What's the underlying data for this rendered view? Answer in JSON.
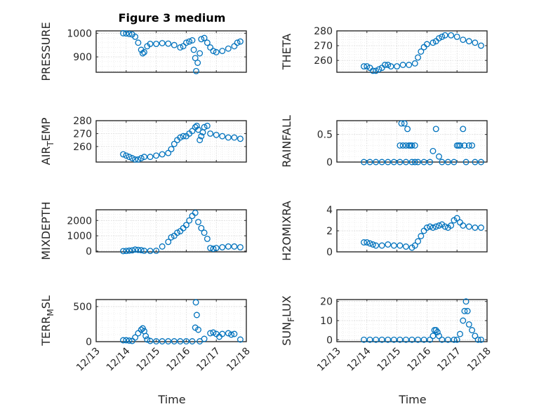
{
  "figure": {
    "title": "Figure 3 medium",
    "xlabel": "Time",
    "x_ticks": [
      "12/13",
      "12/14",
      "12/15",
      "12/16",
      "12/17",
      "12/18"
    ]
  },
  "colors": {
    "marker": "#0072BD",
    "axis": "#262626"
  },
  "chart_data": [
    {
      "type": "scatter",
      "ylabel": "PRESSURE",
      "ylim": [
        835,
        1010
      ],
      "yticks": [
        "900",
        "1000"
      ],
      "ytick_values": [
        900,
        1000
      ],
      "points": [
        [
          13.9,
          1000
        ],
        [
          14.0,
          999
        ],
        [
          14.1,
          997
        ],
        [
          14.2,
          995
        ],
        [
          14.3,
          985
        ],
        [
          14.4,
          960
        ],
        [
          14.5,
          930
        ],
        [
          14.55,
          915
        ],
        [
          14.6,
          920
        ],
        [
          14.7,
          945
        ],
        [
          14.8,
          955
        ],
        [
          15.0,
          955
        ],
        [
          15.2,
          958
        ],
        [
          15.4,
          956
        ],
        [
          15.6,
          950
        ],
        [
          15.8,
          940
        ],
        [
          15.9,
          945
        ],
        [
          16.0,
          960
        ],
        [
          16.1,
          965
        ],
        [
          16.2,
          970
        ],
        [
          16.25,
          930
        ],
        [
          16.3,
          895
        ],
        [
          16.33,
          840
        ],
        [
          16.38,
          875
        ],
        [
          16.45,
          915
        ],
        [
          16.5,
          975
        ],
        [
          16.6,
          980
        ],
        [
          16.7,
          960
        ],
        [
          16.8,
          940
        ],
        [
          16.9,
          925
        ],
        [
          17.0,
          920
        ],
        [
          17.2,
          925
        ],
        [
          17.4,
          935
        ],
        [
          17.6,
          945
        ],
        [
          17.7,
          960
        ],
        [
          17.8,
          965
        ]
      ]
    },
    {
      "type": "scatter",
      "ylabel": "THETA",
      "ylim": [
        252,
        280
      ],
      "yticks": [
        "260",
        "270",
        "280"
      ],
      "ytick_values": [
        260,
        270,
        280
      ],
      "points": [
        [
          13.9,
          256
        ],
        [
          14.0,
          256
        ],
        [
          14.1,
          255
        ],
        [
          14.2,
          253
        ],
        [
          14.3,
          253
        ],
        [
          14.4,
          254
        ],
        [
          14.5,
          255
        ],
        [
          14.6,
          257
        ],
        [
          14.7,
          257
        ],
        [
          14.8,
          256
        ],
        [
          15.0,
          256
        ],
        [
          15.2,
          257
        ],
        [
          15.4,
          257
        ],
        [
          15.6,
          258
        ],
        [
          15.7,
          262
        ],
        [
          15.8,
          266
        ],
        [
          15.9,
          269
        ],
        [
          16.0,
          271
        ],
        [
          16.2,
          272
        ],
        [
          16.3,
          273
        ],
        [
          16.4,
          275
        ],
        [
          16.5,
          276
        ],
        [
          16.6,
          277
        ],
        [
          16.8,
          277
        ],
        [
          17.0,
          276
        ],
        [
          17.2,
          274
        ],
        [
          17.4,
          273
        ],
        [
          17.6,
          272
        ],
        [
          17.8,
          270
        ]
      ]
    },
    {
      "type": "scatter",
      "ylabel": "AIR_TEMP",
      "ylim": [
        248,
        280
      ],
      "yticks": [
        "260",
        "270",
        "280"
      ],
      "ytick_values": [
        260,
        270,
        280
      ],
      "points": [
        [
          13.9,
          254
        ],
        [
          14.0,
          253
        ],
        [
          14.1,
          252
        ],
        [
          14.2,
          251
        ],
        [
          14.3,
          250
        ],
        [
          14.4,
          250
        ],
        [
          14.5,
          251
        ],
        [
          14.6,
          252
        ],
        [
          14.8,
          252
        ],
        [
          15.0,
          253
        ],
        [
          15.2,
          254
        ],
        [
          15.4,
          255
        ],
        [
          15.5,
          258
        ],
        [
          15.6,
          262
        ],
        [
          15.7,
          265
        ],
        [
          15.8,
          267
        ],
        [
          15.9,
          268
        ],
        [
          16.0,
          268
        ],
        [
          16.1,
          270
        ],
        [
          16.2,
          272
        ],
        [
          16.3,
          275
        ],
        [
          16.35,
          276
        ],
        [
          16.4,
          273
        ],
        [
          16.45,
          265
        ],
        [
          16.5,
          268
        ],
        [
          16.55,
          271
        ],
        [
          16.6,
          275
        ],
        [
          16.7,
          276
        ],
        [
          16.8,
          270
        ],
        [
          17.0,
          269
        ],
        [
          17.2,
          268
        ],
        [
          17.4,
          267
        ],
        [
          17.6,
          267
        ],
        [
          17.8,
          266
        ]
      ]
    },
    {
      "type": "scatter",
      "ylabel": "RAINFALL",
      "ylim": [
        0,
        0.75
      ],
      "yticks": [
        "0",
        "0.5"
      ],
      "ytick_values": [
        0,
        0.5
      ],
      "points": [
        [
          13.9,
          0
        ],
        [
          14.1,
          0
        ],
        [
          14.3,
          0
        ],
        [
          14.5,
          0
        ],
        [
          14.7,
          0
        ],
        [
          14.9,
          0
        ],
        [
          15.1,
          0
        ],
        [
          15.3,
          0
        ],
        [
          15.5,
          0
        ],
        [
          15.6,
          0
        ],
        [
          15.1,
          0.3
        ],
        [
          15.15,
          0.7
        ],
        [
          15.2,
          0.3
        ],
        [
          15.25,
          0.7
        ],
        [
          15.3,
          0.3
        ],
        [
          15.35,
          0.6
        ],
        [
          15.4,
          0.3
        ],
        [
          15.45,
          0.3
        ],
        [
          15.5,
          0.3
        ],
        [
          15.6,
          0.3
        ],
        [
          15.7,
          0
        ],
        [
          15.9,
          0
        ],
        [
          16.1,
          0
        ],
        [
          16.2,
          0.2
        ],
        [
          16.3,
          0.6
        ],
        [
          16.4,
          0.1
        ],
        [
          16.5,
          0
        ],
        [
          16.7,
          0
        ],
        [
          16.9,
          0
        ],
        [
          17.0,
          0.3
        ],
        [
          17.05,
          0.3
        ],
        [
          17.1,
          0.3
        ],
        [
          17.2,
          0.6
        ],
        [
          17.25,
          0.3
        ],
        [
          17.3,
          0
        ],
        [
          17.4,
          0.3
        ],
        [
          17.5,
          0.3
        ],
        [
          17.6,
          0
        ],
        [
          17.8,
          0
        ]
      ]
    },
    {
      "type": "scatter",
      "ylabel": "MIXDEPTH",
      "ylim": [
        -50,
        2700
      ],
      "yticks": [
        "0",
        "1000",
        "2000"
      ],
      "ytick_values": [
        0,
        1000,
        2000
      ],
      "points": [
        [
          13.9,
          0
        ],
        [
          14.0,
          10
        ],
        [
          14.1,
          30
        ],
        [
          14.2,
          50
        ],
        [
          14.3,
          100
        ],
        [
          14.4,
          80
        ],
        [
          14.5,
          60
        ],
        [
          14.6,
          20
        ],
        [
          14.8,
          10
        ],
        [
          15.0,
          20
        ],
        [
          15.2,
          300
        ],
        [
          15.4,
          600
        ],
        [
          15.5,
          900
        ],
        [
          15.6,
          1000
        ],
        [
          15.7,
          1200
        ],
        [
          15.8,
          1300
        ],
        [
          15.9,
          1500
        ],
        [
          16.0,
          1700
        ],
        [
          16.1,
          2000
        ],
        [
          16.2,
          2300
        ],
        [
          16.3,
          2500
        ],
        [
          16.4,
          1900
        ],
        [
          16.5,
          1500
        ],
        [
          16.6,
          1200
        ],
        [
          16.7,
          800
        ],
        [
          16.8,
          200
        ],
        [
          16.9,
          150
        ],
        [
          17.0,
          200
        ],
        [
          17.2,
          250
        ],
        [
          17.4,
          300
        ],
        [
          17.6,
          300
        ],
        [
          17.8,
          250
        ]
      ]
    },
    {
      "type": "scatter",
      "ylabel": "H2OMIXRA",
      "ylim": [
        0,
        4
      ],
      "yticks": [
        "0",
        "2",
        "4"
      ],
      "ytick_values": [
        0,
        2,
        4
      ],
      "points": [
        [
          13.9,
          0.9
        ],
        [
          14.0,
          0.9
        ],
        [
          14.1,
          0.8
        ],
        [
          14.2,
          0.7
        ],
        [
          14.3,
          0.6
        ],
        [
          14.5,
          0.6
        ],
        [
          14.7,
          0.7
        ],
        [
          14.9,
          0.6
        ],
        [
          15.1,
          0.6
        ],
        [
          15.3,
          0.5
        ],
        [
          15.5,
          0.4
        ],
        [
          15.6,
          0.6
        ],
        [
          15.7,
          1.0
        ],
        [
          15.8,
          1.5
        ],
        [
          15.9,
          2.0
        ],
        [
          16.0,
          2.3
        ],
        [
          16.1,
          2.4
        ],
        [
          16.2,
          2.3
        ],
        [
          16.3,
          2.4
        ],
        [
          16.4,
          2.5
        ],
        [
          16.5,
          2.6
        ],
        [
          16.6,
          2.4
        ],
        [
          16.7,
          2.3
        ],
        [
          16.8,
          2.5
        ],
        [
          16.9,
          3.0
        ],
        [
          17.0,
          3.2
        ],
        [
          17.1,
          2.8
        ],
        [
          17.2,
          2.5
        ],
        [
          17.4,
          2.4
        ],
        [
          17.6,
          2.3
        ],
        [
          17.8,
          2.3
        ]
      ]
    },
    {
      "type": "scatter",
      "ylabel": "TERR_MSL",
      "ylim": [
        0,
        600
      ],
      "yticks": [
        "0",
        "500"
      ],
      "ytick_values": [
        0,
        500
      ],
      "points": [
        [
          13.9,
          20
        ],
        [
          14.0,
          20
        ],
        [
          14.1,
          15
        ],
        [
          14.2,
          10
        ],
        [
          14.3,
          60
        ],
        [
          14.4,
          120
        ],
        [
          14.5,
          170
        ],
        [
          14.55,
          190
        ],
        [
          14.6,
          150
        ],
        [
          14.65,
          80
        ],
        [
          14.7,
          30
        ],
        [
          14.8,
          10
        ],
        [
          15.0,
          5
        ],
        [
          15.2,
          5
        ],
        [
          15.4,
          5
        ],
        [
          15.6,
          5
        ],
        [
          15.8,
          5
        ],
        [
          16.0,
          5
        ],
        [
          16.2,
          5
        ],
        [
          16.3,
          200
        ],
        [
          16.32,
          560
        ],
        [
          16.35,
          380
        ],
        [
          16.4,
          170
        ],
        [
          16.45,
          5
        ],
        [
          16.6,
          40
        ],
        [
          16.8,
          120
        ],
        [
          16.9,
          130
        ],
        [
          17.0,
          110
        ],
        [
          17.1,
          70
        ],
        [
          17.2,
          110
        ],
        [
          17.4,
          120
        ],
        [
          17.5,
          100
        ],
        [
          17.6,
          110
        ],
        [
          17.8,
          30
        ]
      ]
    },
    {
      "type": "scatter",
      "ylabel": "SUN_FLUX",
      "ylim": [
        -1,
        21
      ],
      "yticks": [
        "0",
        "10",
        "20"
      ],
      "ytick_values": [
        0,
        10,
        20
      ],
      "points": [
        [
          13.9,
          0
        ],
        [
          14.1,
          0
        ],
        [
          14.3,
          0
        ],
        [
          14.5,
          0
        ],
        [
          14.7,
          0
        ],
        [
          14.9,
          0
        ],
        [
          15.1,
          0
        ],
        [
          15.3,
          0
        ],
        [
          15.5,
          0
        ],
        [
          15.7,
          0
        ],
        [
          15.9,
          0
        ],
        [
          16.1,
          0
        ],
        [
          16.2,
          2
        ],
        [
          16.25,
          5
        ],
        [
          16.3,
          5
        ],
        [
          16.35,
          4
        ],
        [
          16.4,
          2
        ],
        [
          16.5,
          0
        ],
        [
          16.7,
          0
        ],
        [
          16.9,
          0
        ],
        [
          17.0,
          0
        ],
        [
          17.1,
          3
        ],
        [
          17.2,
          10
        ],
        [
          17.25,
          15
        ],
        [
          17.3,
          20
        ],
        [
          17.35,
          15
        ],
        [
          17.4,
          8
        ],
        [
          17.5,
          5
        ],
        [
          17.6,
          2
        ],
        [
          17.7,
          0
        ],
        [
          17.8,
          0
        ]
      ]
    }
  ]
}
